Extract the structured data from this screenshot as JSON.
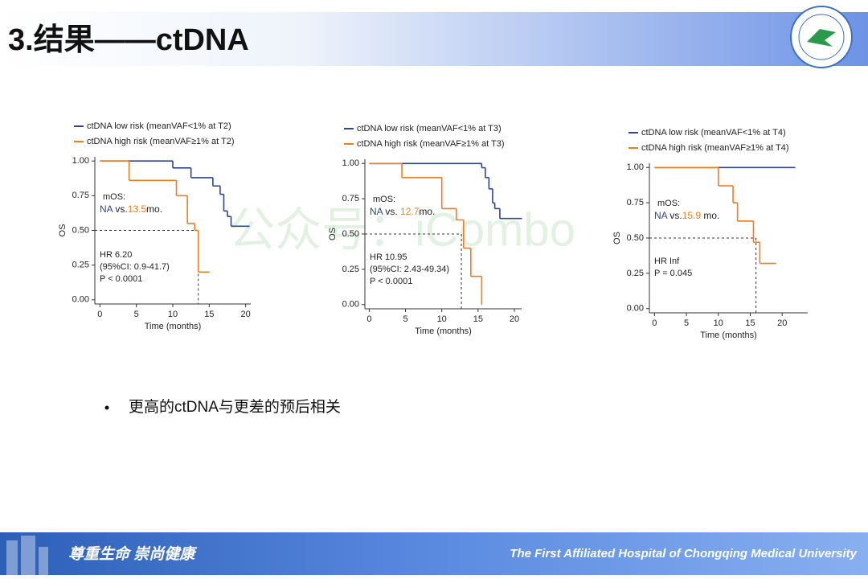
{
  "header": {
    "title": "3.结果——ctDNA"
  },
  "watermark": "公众号：iCombo",
  "bullet": "更高的ctDNA与更差的预后相关",
  "footer": {
    "motto": "尊重生命  崇尚健康",
    "hospital": "The First Affiliated Hospital of Chongqing Medical University"
  },
  "chart_data": [
    {
      "type": "km",
      "xlabel": "Time (months)",
      "ylabel": "OS",
      "xlim": [
        -0.7,
        20.7
      ],
      "ylim": [
        -0.03,
        1.03
      ],
      "xticks": [
        0,
        5,
        10,
        15,
        20
      ],
      "yticks": [
        {
          "value": 0,
          "label": "0.00"
        },
        {
          "value": 0.25,
          "label": "0.25"
        },
        {
          "value": 0.5,
          "label": "0.50"
        },
        {
          "value": 0.75,
          "label": "0.75"
        },
        {
          "value": 1,
          "label": "1.00"
        }
      ],
      "series": [
        {
          "name": "ctDNA low risk (meanVAF<1% at T2)",
          "color": "#2e4593",
          "x": [
            0,
            10,
            12.5,
            15.5,
            16.5,
            17,
            17.5,
            18,
            20.5
          ],
          "values": [
            1,
            0.95,
            0.88,
            0.82,
            0.76,
            0.64,
            0.6,
            0.53,
            0.53
          ]
        },
        {
          "name": "ctDNA high risk (meanVAF≥1% at T2)",
          "color": "#ee7d22",
          "x": [
            0,
            4,
            10.5,
            12,
            13,
            13.5,
            15
          ],
          "values": [
            1,
            0.86,
            0.75,
            0.55,
            0.5,
            0.2,
            0.2
          ]
        }
      ],
      "median": 13.5,
      "median_level": 0.5,
      "mos_title": "mOS:",
      "mos": [
        {
          "text": "NA",
          "color": "#2e4593"
        },
        {
          "text": " vs.",
          "color": "#222222"
        },
        {
          "text": "13.5",
          "color": "#ee7d22"
        },
        {
          "text": "mo.",
          "color": "#222222"
        }
      ],
      "annotations": [
        "HR 6.20",
        "(95%CI: 0.9-41.7)",
        "P < 0.0001"
      ]
    },
    {
      "type": "km",
      "xlabel": "Time (months)",
      "ylabel": "OS",
      "xlim": [
        -0.6,
        21
      ],
      "ylim": [
        -0.03,
        1.03
      ],
      "xticks": [
        0,
        5,
        10,
        15,
        20
      ],
      "yticks": [
        {
          "value": 0,
          "label": "0.00"
        },
        {
          "value": 0.25,
          "label": "0.25"
        },
        {
          "value": 0.5,
          "label": "0.50"
        },
        {
          "value": 0.75,
          "label": "0.75"
        },
        {
          "value": 1,
          "label": "1.00"
        }
      ],
      "series": [
        {
          "name": "ctDNA low risk (meanVAF<1% at T3)",
          "color": "#2e4593",
          "x": [
            0,
            15.5,
            16,
            16.5,
            17,
            17.3,
            18,
            21
          ],
          "values": [
            1,
            0.97,
            0.9,
            0.82,
            0.72,
            0.68,
            0.61,
            0.61
          ]
        },
        {
          "name": "ctDNA high risk (meanVAF≥1% at T3)",
          "color": "#ee7d22",
          "x": [
            0,
            4.5,
            10,
            12,
            13,
            14,
            15.5
          ],
          "values": [
            1,
            0.9,
            0.68,
            0.6,
            0.4,
            0.2,
            0
          ]
        }
      ],
      "median": 12.7,
      "median_level": 0.5,
      "mos_title": "mOS:",
      "mos": [
        {
          "text": "NA",
          "color": "#2e4593"
        },
        {
          "text": " vs.",
          "color": "#222222"
        },
        {
          "text": " 12.7",
          "color": "#ee7d22"
        },
        {
          "text": "mo.",
          "color": "#222222"
        }
      ],
      "annotations": [
        "HR 10.95",
        "(95%CI: 2.43-49.34)",
        "P < 0.0001"
      ]
    },
    {
      "type": "km",
      "xlabel": "Time (months)",
      "ylabel": "OS",
      "xlim": [
        -0.8,
        24
      ],
      "ylim": [
        -0.03,
        1.03
      ],
      "xticks": [
        0,
        5,
        10,
        15,
        20
      ],
      "yticks": [
        {
          "value": 0,
          "label": "0.00"
        },
        {
          "value": 0.25,
          "label": "0.25"
        },
        {
          "value": 0.5,
          "label": "0.50"
        },
        {
          "value": 0.75,
          "label": "0.75"
        },
        {
          "value": 1,
          "label": "1.00"
        }
      ],
      "series": [
        {
          "name": "ctDNA low risk (meanVAF<1% at T4)",
          "color": "#2e4593",
          "x": [
            0,
            22
          ],
          "values": [
            1,
            1
          ]
        },
        {
          "name": "ctDNA high risk (meanVAF≥1% at T4)",
          "color": "#ee7d22",
          "x": [
            0,
            10,
            12.3,
            13,
            15.5,
            16.5,
            19
          ],
          "values": [
            1,
            0.87,
            0.75,
            0.62,
            0.47,
            0.32,
            0.32
          ]
        }
      ],
      "median": 15.9,
      "median_level": 0.5,
      "mos_title": "mOS:",
      "mos": [
        {
          "text": "NA",
          "color": "#2e4593"
        },
        {
          "text": " vs.",
          "color": "#222222"
        },
        {
          "text": "15.9",
          "color": "#ee7d22"
        },
        {
          "text": " mo.",
          "color": "#222222"
        }
      ],
      "annotations": [
        "HR Inf",
        "P = 0.045"
      ]
    }
  ]
}
